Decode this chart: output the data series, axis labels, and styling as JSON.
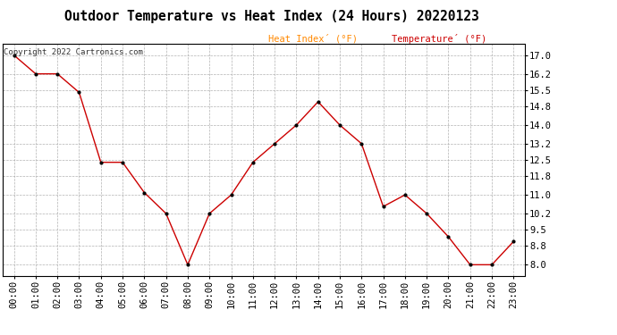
{
  "title": "Outdoor Temperature vs Heat Index (24 Hours) 20220123",
  "copyright_text": "Copyright 2022 Cartronics.com",
  "legend_heat_index": "Heat Index´ (°F)",
  "legend_temperature": "Temperature´ (°F)",
  "x_labels": [
    "00:00",
    "01:00",
    "02:00",
    "03:00",
    "04:00",
    "05:00",
    "06:00",
    "07:00",
    "08:00",
    "09:00",
    "10:00",
    "11:00",
    "12:00",
    "13:00",
    "14:00",
    "15:00",
    "16:00",
    "17:00",
    "18:00",
    "19:00",
    "20:00",
    "21:00",
    "22:00",
    "23:00"
  ],
  "temperature": [
    17.0,
    16.2,
    16.2,
    15.4,
    12.4,
    12.4,
    11.1,
    10.2,
    8.0,
    10.2,
    11.0,
    12.4,
    13.2,
    14.0,
    15.0,
    14.0,
    13.2,
    10.5,
    11.0,
    10.2,
    9.2,
    8.0,
    8.0,
    9.0
  ],
  "ylim": [
    7.5,
    17.5
  ],
  "yticks": [
    8.0,
    8.8,
    9.5,
    10.2,
    11.0,
    11.8,
    12.5,
    13.2,
    14.0,
    14.8,
    15.5,
    16.2,
    17.0
  ],
  "line_color": "#cc0000",
  "marker_color": "#000000",
  "heat_index_legend_color": "#ff8800",
  "temperature_legend_color": "#cc0000",
  "background_color": "#ffffff",
  "grid_color": "#aaaaaa",
  "title_fontsize": 10.5,
  "tick_fontsize": 7.5,
  "copyright_fontsize": 6.5,
  "legend_fontsize": 7.5
}
